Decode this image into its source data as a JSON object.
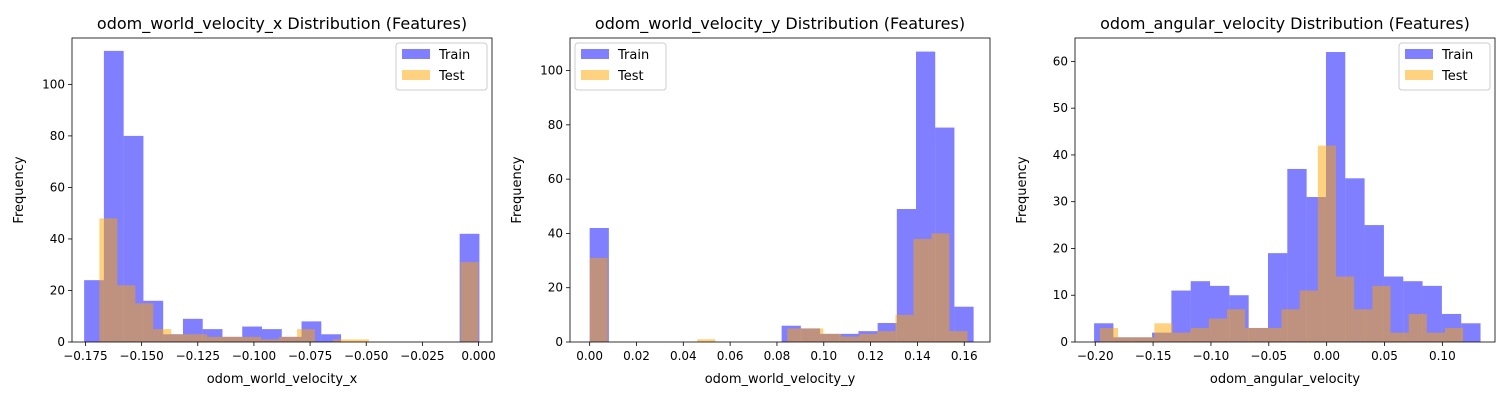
{
  "colors": {
    "train": "#0000ff",
    "test": "#ffa500",
    "overlap": "#bc8f7f"
  },
  "chart_data": [
    {
      "type": "bar",
      "title": "odom_world_velocity_x Distribution (Features)",
      "xlabel": "odom_world_velocity_x",
      "ylabel": "Frequency",
      "xlim": [
        -0.181,
        0.006
      ],
      "ylim": [
        0,
        118
      ],
      "xticks": [
        -0.175,
        -0.15,
        -0.125,
        -0.1,
        -0.075,
        -0.05,
        -0.025,
        0.0
      ],
      "xticklabels": [
        "−0.175",
        "−0.150",
        "−0.125",
        "−0.100",
        "−0.075",
        "−0.050",
        "−0.025",
        "0.000"
      ],
      "yticks": [
        0,
        20,
        40,
        60,
        80,
        100
      ],
      "yticklabels": [
        "0",
        "20",
        "40",
        "60",
        "80",
        "100"
      ],
      "legend": {
        "placement": "upper right"
      },
      "series": [
        {
          "name": "Train",
          "color": "#0000ff",
          "alpha": 0.5,
          "bins": [
            [
              -0.1756,
              -0.1668,
              24
            ],
            [
              -0.1668,
              -0.158,
              113
            ],
            [
              -0.158,
              -0.1492,
              80
            ],
            [
              -0.1492,
              -0.1404,
              16
            ],
            [
              -0.1404,
              -0.1316,
              3
            ],
            [
              -0.1316,
              -0.1228,
              9
            ],
            [
              -0.1228,
              -0.114,
              5
            ],
            [
              -0.114,
              -0.1052,
              2
            ],
            [
              -0.1052,
              -0.0964,
              6
            ],
            [
              -0.0964,
              -0.0876,
              5
            ],
            [
              -0.0876,
              -0.0788,
              2
            ],
            [
              -0.0788,
              -0.07,
              8
            ],
            [
              -0.07,
              -0.0612,
              3
            ],
            [
              -0.0084,
              0.0004,
              42
            ]
          ]
        },
        {
          "name": "Test",
          "color": "#ffa500",
          "alpha": 0.5,
          "bins": [
            [
              -0.1688,
              -0.1608,
              48
            ],
            [
              -0.1608,
              -0.1528,
              22
            ],
            [
              -0.1528,
              -0.1448,
              15
            ],
            [
              -0.1448,
              -0.1368,
              5
            ],
            [
              -0.1368,
              -0.1288,
              3
            ],
            [
              -0.1288,
              -0.1208,
              3
            ],
            [
              -0.1208,
              -0.1128,
              2
            ],
            [
              -0.1128,
              -0.1048,
              2
            ],
            [
              -0.1048,
              -0.0968,
              2
            ],
            [
              -0.0968,
              -0.0888,
              1
            ],
            [
              -0.0888,
              -0.0808,
              2
            ],
            [
              -0.0808,
              -0.0728,
              5
            ],
            [
              -0.0648,
              -0.0568,
              1
            ],
            [
              -0.0568,
              -0.0488,
              1
            ],
            [
              -0.008,
              0.0,
              31
            ]
          ]
        }
      ]
    },
    {
      "type": "bar",
      "title": "odom_world_velocity_y Distribution (Features)",
      "xlabel": "odom_world_velocity_y",
      "ylabel": "Frequency",
      "xlim": [
        -0.0084,
        0.171
      ],
      "ylim": [
        0,
        112
      ],
      "xticks": [
        0.0,
        0.02,
        0.04,
        0.06,
        0.08,
        0.1,
        0.12,
        0.14,
        0.16
      ],
      "xticklabels": [
        "0.00",
        "0.02",
        "0.04",
        "0.06",
        "0.08",
        "0.10",
        "0.12",
        "0.14",
        "0.16"
      ],
      "yticks": [
        0,
        20,
        40,
        60,
        80,
        100
      ],
      "yticklabels": [
        "0",
        "20",
        "40",
        "60",
        "80",
        "100"
      ],
      "legend": {
        "placement": "upper left"
      },
      "series": [
        {
          "name": "Train",
          "color": "#0000ff",
          "alpha": 0.5,
          "bins": [
            [
              0.0,
              0.0082,
              42
            ],
            [
              0.082,
              0.0902,
              6
            ],
            [
              0.0902,
              0.0984,
              5
            ],
            [
              0.0984,
              0.1066,
              3
            ],
            [
              0.1066,
              0.1148,
              3
            ],
            [
              0.1148,
              0.123,
              4
            ],
            [
              0.123,
              0.1312,
              7
            ],
            [
              0.1312,
              0.1394,
              49
            ],
            [
              0.1394,
              0.1476,
              107
            ],
            [
              0.1476,
              0.1558,
              79
            ],
            [
              0.1558,
              0.164,
              13
            ]
          ]
        },
        {
          "name": "Test",
          "color": "#ffa500",
          "alpha": 0.5,
          "bins": [
            [
              0.0,
              0.0077,
              31
            ],
            [
              0.046,
              0.0537,
              1
            ],
            [
              0.0844,
              0.0921,
              5
            ],
            [
              0.0921,
              0.0998,
              5
            ],
            [
              0.0998,
              0.1075,
              3
            ],
            [
              0.1075,
              0.1152,
              2
            ],
            [
              0.1152,
              0.1229,
              3
            ],
            [
              0.1229,
              0.1306,
              4
            ],
            [
              0.1306,
              0.1383,
              10
            ],
            [
              0.1383,
              0.146,
              38
            ],
            [
              0.146,
              0.1537,
              40
            ],
            [
              0.1537,
              0.1614,
              4
            ]
          ]
        }
      ]
    },
    {
      "type": "bar",
      "title": "odom_angular_velocity Distribution (Features)",
      "xlabel": "odom_angular_velocity",
      "ylabel": "Frequency",
      "xlim": [
        -0.2175,
        0.1455
      ],
      "ylim": [
        0,
        65
      ],
      "xticks": [
        -0.2,
        -0.15,
        -0.1,
        -0.05,
        0.0,
        0.05,
        0.1
      ],
      "xticklabels": [
        "−0.20",
        "−0.15",
        "−0.10",
        "−0.05",
        "0.00",
        "0.05",
        "0.10"
      ],
      "yticks": [
        0,
        10,
        20,
        30,
        40,
        50,
        60
      ],
      "yticklabels": [
        "0",
        "10",
        "20",
        "30",
        "40",
        "50",
        "60"
      ],
      "legend": {
        "placement": "upper right"
      },
      "series": [
        {
          "name": "Train",
          "color": "#0000ff",
          "alpha": 0.5,
          "bins": [
            [
              -0.201,
              -0.1843,
              4
            ],
            [
              -0.1843,
              -0.1676,
              1
            ],
            [
              -0.1676,
              -0.1509,
              1
            ],
            [
              -0.1509,
              -0.1342,
              2
            ],
            [
              -0.1342,
              -0.1175,
              11
            ],
            [
              -0.1175,
              -0.1008,
              13
            ],
            [
              -0.1008,
              -0.0841,
              12
            ],
            [
              -0.0841,
              -0.0674,
              10
            ],
            [
              -0.0674,
              -0.0507,
              3
            ],
            [
              -0.0507,
              -0.034,
              19
            ],
            [
              -0.034,
              -0.0173,
              37
            ],
            [
              -0.0173,
              -0.0006,
              31
            ],
            [
              -0.0006,
              0.0161,
              62
            ],
            [
              0.0161,
              0.0328,
              35
            ],
            [
              0.0328,
              0.0495,
              25
            ],
            [
              0.0495,
              0.0662,
              14
            ],
            [
              0.0662,
              0.0829,
              13
            ],
            [
              0.0829,
              0.0996,
              12
            ],
            [
              0.0996,
              0.1163,
              6
            ],
            [
              0.1163,
              0.133,
              4
            ]
          ]
        },
        {
          "name": "Test",
          "color": "#ffa500",
          "alpha": 0.5,
          "bins": [
            [
              -0.196,
              -0.1803,
              3
            ],
            [
              -0.1803,
              -0.1646,
              1
            ],
            [
              -0.1646,
              -0.1489,
              1
            ],
            [
              -0.1489,
              -0.1332,
              4
            ],
            [
              -0.1332,
              -0.1175,
              2
            ],
            [
              -0.1175,
              -0.1018,
              3
            ],
            [
              -0.1018,
              -0.0861,
              5
            ],
            [
              -0.0861,
              -0.0704,
              7
            ],
            [
              -0.0704,
              -0.0547,
              3
            ],
            [
              -0.0547,
              -0.039,
              3
            ],
            [
              -0.039,
              -0.0233,
              7
            ],
            [
              -0.0233,
              -0.0076,
              11
            ],
            [
              -0.0076,
              0.0081,
              42
            ],
            [
              0.0081,
              0.0238,
              14
            ],
            [
              0.0238,
              0.0395,
              7
            ],
            [
              0.0395,
              0.0552,
              12
            ],
            [
              0.0552,
              0.0709,
              2
            ],
            [
              0.0709,
              0.0866,
              6
            ],
            [
              0.0866,
              0.1023,
              2
            ],
            [
              0.1023,
              0.118,
              3
            ]
          ]
        }
      ]
    }
  ]
}
